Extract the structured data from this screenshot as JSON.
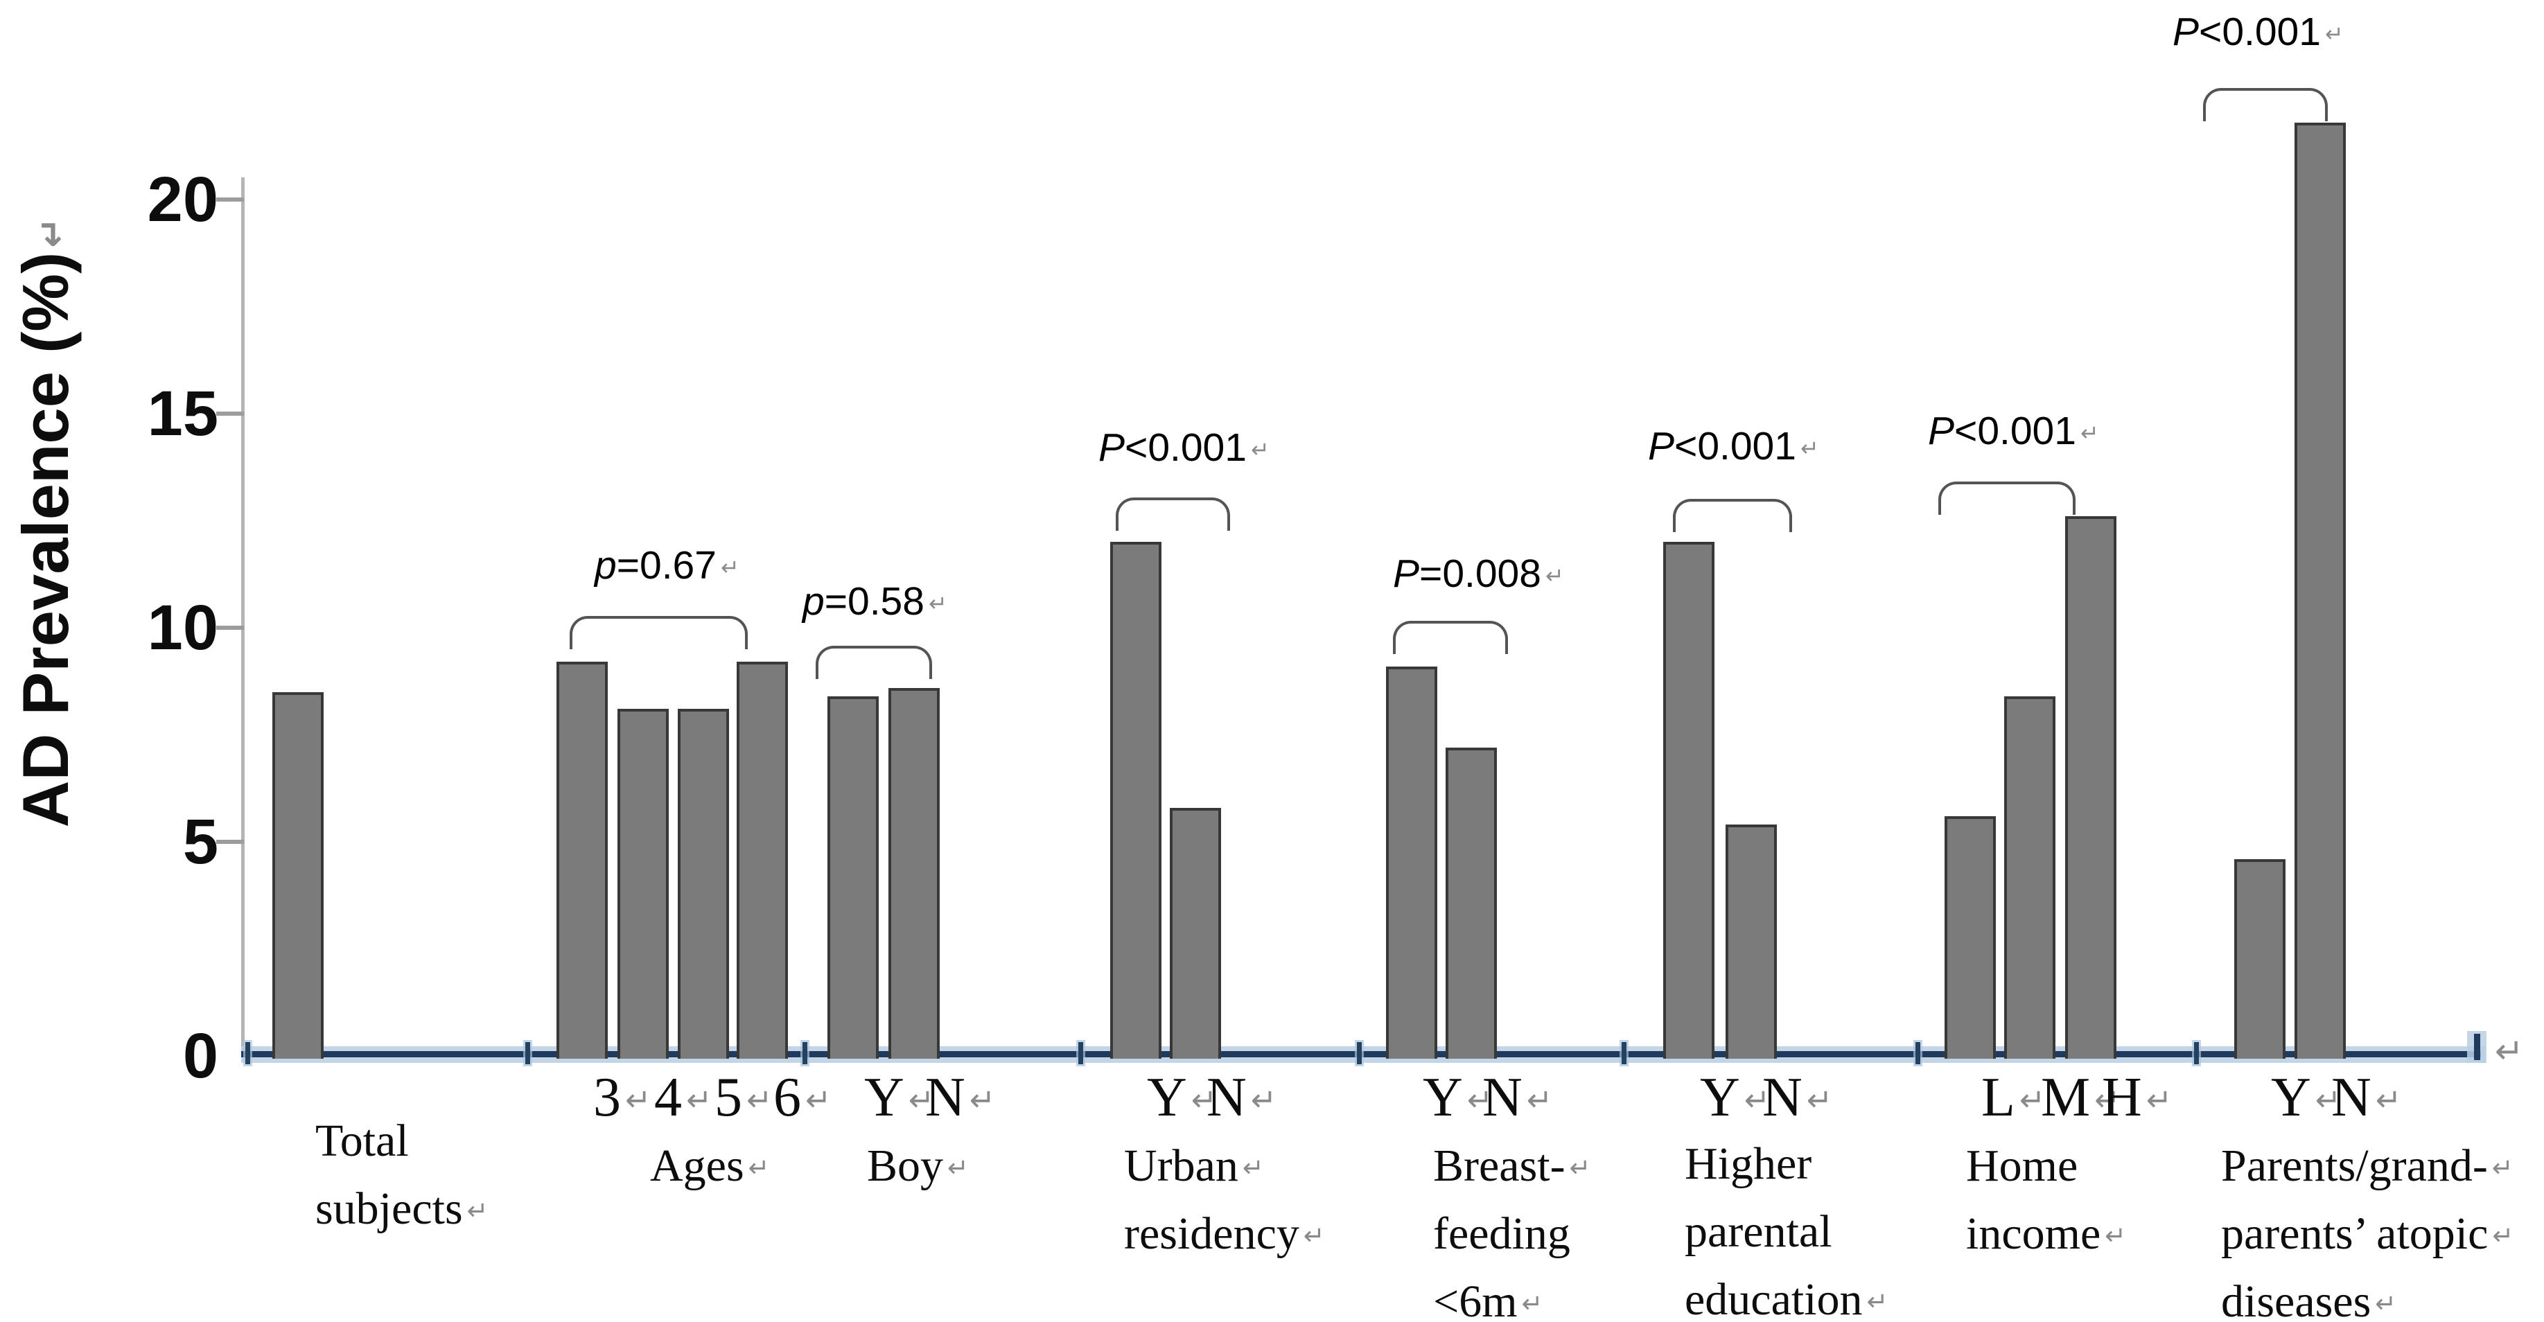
{
  "figure": {
    "y_axis": {
      "title": "AD Prevalence (%)",
      "title_ret": "↵",
      "ticks": [
        {
          "label": "0",
          "value": 0
        },
        {
          "label": "5",
          "value": 5
        },
        {
          "label": "10",
          "value": 10
        },
        {
          "label": "15",
          "value": 15
        },
        {
          "label": "20",
          "value": 20
        }
      ]
    },
    "x_axis": {
      "end_ret": "↵"
    },
    "colors": {
      "bar_fill": "#7b7b7b",
      "bar_border": "#383838",
      "x_axis_core": "#1f3a5c",
      "x_axis_halo": "#b9cfe4",
      "y_axis": "#b5b5b5",
      "bracket": "#545454",
      "text": "#0d0d0d",
      "return_char": "#8a8a8a"
    },
    "groups": [
      {
        "id": "total-subjects",
        "name_lines": [
          {
            "text": "Total",
            "ret": ""
          },
          {
            "text": "subjects",
            "ret": "↵"
          }
        ],
        "bars": [
          {
            "label": "",
            "ret": "",
            "value": 8.5
          }
        ],
        "p": null
      },
      {
        "id": "ages",
        "name_lines": [
          {
            "text": "Ages",
            "ret": "↵"
          }
        ],
        "bars": [
          {
            "label": "3",
            "ret": "↵",
            "value": 9.2
          },
          {
            "label": "4",
            "ret": "↵",
            "value": 8.1
          },
          {
            "label": "5",
            "ret": "↵",
            "value": 8.1
          },
          {
            "label": "6",
            "ret": "↵",
            "value": 9.2
          }
        ],
        "p": {
          "sym": "p",
          "rest": "=0.67",
          "ret": "↵"
        }
      },
      {
        "id": "boy",
        "name_lines": [
          {
            "text": "Boy",
            "ret": "↵"
          }
        ],
        "bars": [
          {
            "label": "Y",
            "ret": "↵",
            "value": 8.4
          },
          {
            "label": "N",
            "ret": "↵",
            "value": 8.6
          }
        ],
        "p": {
          "sym": "p",
          "rest": "=0.58",
          "ret": "↵"
        }
      },
      {
        "id": "urban-residency",
        "name_lines": [
          {
            "text": "Urban",
            "ret": "↵"
          },
          {
            "text": "residency",
            "ret": "↵"
          }
        ],
        "bars": [
          {
            "label": "Y",
            "ret": "↵",
            "value": 12.0
          },
          {
            "label": "N",
            "ret": "↵",
            "value": 5.8
          }
        ],
        "p": {
          "sym": "P",
          "rest": "<0.001",
          "ret": "↵"
        }
      },
      {
        "id": "breast-feeding-under-6m",
        "name_lines": [
          {
            "text": "Breast-",
            "ret": "↵"
          },
          {
            "text": "feeding",
            "ret": ""
          },
          {
            "text": "<6m",
            "ret": "↵"
          }
        ],
        "bars": [
          {
            "label": "Y",
            "ret": "↵",
            "value": 9.1
          },
          {
            "label": "N",
            "ret": "↵",
            "value": 7.2
          }
        ],
        "p": {
          "sym": "P",
          "rest": "=0.008",
          "ret": "↵"
        }
      },
      {
        "id": "higher-parental-education",
        "name_lines": [
          {
            "text": "Higher",
            "ret": ""
          },
          {
            "text": "parental",
            "ret": ""
          },
          {
            "text": "education",
            "ret": "↵"
          }
        ],
        "bars": [
          {
            "label": "Y",
            "ret": "↵",
            "value": 12.0
          },
          {
            "label": "N",
            "ret": "↵",
            "value": 5.4
          }
        ],
        "p": {
          "sym": "P",
          "rest": "<0.001",
          "ret": "↵"
        }
      },
      {
        "id": "home-income",
        "name_lines": [
          {
            "text": "Home",
            "ret": ""
          },
          {
            "text": "income",
            "ret": "↵"
          }
        ],
        "bars": [
          {
            "label": "L",
            "ret": "↵",
            "value": 5.6
          },
          {
            "label": "M",
            "ret": "↵",
            "value": 8.4
          },
          {
            "label": "H",
            "ret": "↵",
            "value": 12.6
          }
        ],
        "p": {
          "sym": "P",
          "rest": "<0.001",
          "ret": "↵"
        }
      },
      {
        "id": "parents-grandparents-atopic-diseases",
        "name_lines": [
          {
            "text": "Parents/grand-",
            "ret": "↵"
          },
          {
            "text": "parents’ atopic",
            "ret": "↵"
          },
          {
            "text": "diseases",
            "ret": "↵"
          }
        ],
        "bars": [
          {
            "label": "Y",
            "ret": "↵",
            "value": 4.6
          },
          {
            "label": "N",
            "ret": "↵",
            "value": 21.8
          }
        ],
        "p": {
          "sym": "P",
          "rest": "<0.001",
          "ret": "↵"
        }
      }
    ]
  },
  "chart_data": {
    "type": "bar",
    "title": "",
    "xlabel": "",
    "ylabel": "AD Prevalence (%)",
    "ylim": [
      0,
      22
    ],
    "yticks": [
      0,
      5,
      10,
      15,
      20
    ],
    "grid": false,
    "legend": "none",
    "bar_color": "#7b7b7b",
    "categories": [
      "Total subjects",
      "Ages 3",
      "Ages 4",
      "Ages 5",
      "Ages 6",
      "Boy Y",
      "Boy N",
      "Urban residency Y",
      "Urban residency N",
      "Breast-feeding <6m Y",
      "Breast-feeding <6m N",
      "Higher parental education Y",
      "Higher parental education N",
      "Home income L",
      "Home income M",
      "Home income H",
      "Parents/grandparents' atopic diseases Y",
      "Parents/grandparents' atopic diseases N"
    ],
    "values": [
      8.5,
      9.2,
      8.1,
      8.1,
      9.2,
      8.4,
      8.6,
      12.0,
      5.8,
      9.1,
      7.2,
      12.0,
      5.4,
      5.6,
      8.4,
      12.6,
      4.6,
      21.8
    ],
    "annotations": [
      {
        "group": "Ages",
        "text": "p=0.67"
      },
      {
        "group": "Boy",
        "text": "p=0.58"
      },
      {
        "group": "Urban residency",
        "text": "P<0.001"
      },
      {
        "group": "Breast-feeding <6m",
        "text": "P=0.008"
      },
      {
        "group": "Higher parental education",
        "text": "P<0.001"
      },
      {
        "group": "Home income",
        "text": "P<0.001"
      },
      {
        "group": "Parents/grandparents' atopic diseases",
        "text": "P<0.001"
      }
    ]
  }
}
